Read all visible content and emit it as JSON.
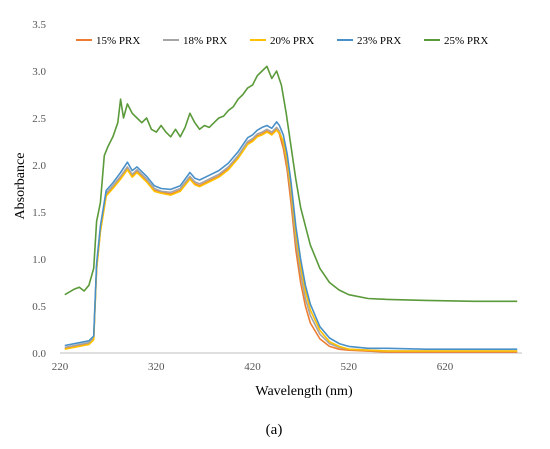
{
  "chart_data": {
    "type": "line",
    "title": "",
    "xlabel": "Wavelength (nm)",
    "ylabel": "Absorbance",
    "xlim": [
      220,
      700
    ],
    "ylim": [
      0,
      3.5
    ],
    "xticks": [
      "220",
      "320",
      "420",
      "520",
      "620"
    ],
    "yticks": [
      "0.0",
      "0.5",
      "1.0",
      "1.5",
      "2.0",
      "2.5",
      "3.0",
      "3.5"
    ],
    "grid": false,
    "legend_position": "top",
    "series": [
      {
        "name": "15% PRX",
        "color": "#ED7D31",
        "x": [
          225,
          240,
          250,
          255,
          258,
          262,
          268,
          275,
          283,
          290,
          295,
          300,
          310,
          318,
          325,
          335,
          345,
          355,
          360,
          365,
          375,
          385,
          395,
          405,
          415,
          420,
          425,
          430,
          435,
          440,
          445,
          448,
          452,
          456,
          460,
          465,
          470,
          475,
          480,
          490,
          500,
          510,
          520,
          540,
          560,
          600,
          650,
          695
        ],
        "y": [
          0.05,
          0.08,
          0.1,
          0.15,
          0.9,
          1.3,
          1.68,
          1.76,
          1.86,
          1.96,
          1.88,
          1.93,
          1.83,
          1.73,
          1.71,
          1.69,
          1.73,
          1.86,
          1.8,
          1.78,
          1.83,
          1.88,
          1.96,
          2.08,
          2.23,
          2.26,
          2.31,
          2.33,
          2.36,
          2.33,
          2.38,
          2.33,
          2.18,
          1.95,
          1.6,
          1.1,
          0.75,
          0.5,
          0.32,
          0.15,
          0.07,
          0.04,
          0.03,
          0.02,
          0.01,
          0.01,
          0.01,
          0.01
        ]
      },
      {
        "name": "18% PRX",
        "color": "#A5A5A5",
        "x": [
          225,
          240,
          250,
          255,
          258,
          262,
          268,
          275,
          283,
          290,
          295,
          300,
          310,
          318,
          325,
          335,
          345,
          355,
          360,
          365,
          375,
          385,
          395,
          405,
          415,
          420,
          425,
          430,
          435,
          440,
          445,
          448,
          452,
          456,
          460,
          465,
          470,
          475,
          480,
          490,
          500,
          510,
          520,
          540,
          560,
          600,
          650,
          695
        ],
        "y": [
          0.06,
          0.09,
          0.11,
          0.16,
          0.92,
          1.32,
          1.7,
          1.78,
          1.88,
          1.98,
          1.9,
          1.95,
          1.85,
          1.75,
          1.72,
          1.71,
          1.75,
          1.88,
          1.82,
          1.8,
          1.85,
          1.9,
          1.98,
          2.1,
          2.25,
          2.28,
          2.33,
          2.35,
          2.38,
          2.35,
          2.4,
          2.36,
          2.24,
          2.02,
          1.7,
          1.2,
          0.85,
          0.58,
          0.4,
          0.2,
          0.1,
          0.06,
          0.04,
          0.03,
          0.02,
          0.02,
          0.02,
          0.02
        ]
      },
      {
        "name": "20% PRX",
        "color": "#FFC000",
        "x": [
          225,
          240,
          250,
          255,
          258,
          262,
          268,
          275,
          283,
          290,
          295,
          300,
          310,
          318,
          325,
          335,
          345,
          355,
          360,
          365,
          375,
          385,
          395,
          405,
          415,
          420,
          425,
          430,
          435,
          440,
          445,
          448,
          452,
          456,
          460,
          465,
          470,
          475,
          480,
          490,
          500,
          510,
          520,
          540,
          560,
          600,
          650,
          695
        ],
        "y": [
          0.04,
          0.07,
          0.09,
          0.14,
          0.89,
          1.29,
          1.67,
          1.75,
          1.85,
          1.95,
          1.87,
          1.92,
          1.82,
          1.72,
          1.7,
          1.68,
          1.72,
          1.85,
          1.79,
          1.77,
          1.82,
          1.87,
          1.95,
          2.07,
          2.22,
          2.25,
          2.3,
          2.32,
          2.35,
          2.32,
          2.37,
          2.34,
          2.25,
          2.05,
          1.75,
          1.28,
          0.93,
          0.66,
          0.46,
          0.24,
          0.12,
          0.07,
          0.04,
          0.03,
          0.02,
          0.02,
          0.02,
          0.02
        ]
      },
      {
        "name": "23% PRX",
        "color": "#4A90C8",
        "x": [
          225,
          240,
          250,
          255,
          258,
          262,
          268,
          275,
          283,
          290,
          295,
          300,
          310,
          318,
          325,
          335,
          345,
          355,
          360,
          365,
          375,
          385,
          395,
          405,
          415,
          420,
          425,
          430,
          435,
          440,
          445,
          448,
          452,
          456,
          460,
          465,
          470,
          475,
          480,
          490,
          500,
          510,
          520,
          540,
          560,
          600,
          650,
          695
        ],
        "y": [
          0.08,
          0.11,
          0.13,
          0.18,
          0.95,
          1.35,
          1.73,
          1.81,
          1.92,
          2.03,
          1.94,
          1.98,
          1.88,
          1.78,
          1.75,
          1.74,
          1.78,
          1.92,
          1.86,
          1.84,
          1.89,
          1.94,
          2.02,
          2.14,
          2.29,
          2.32,
          2.37,
          2.4,
          2.42,
          2.39,
          2.46,
          2.42,
          2.32,
          2.12,
          1.82,
          1.35,
          1.0,
          0.72,
          0.52,
          0.28,
          0.16,
          0.1,
          0.07,
          0.05,
          0.05,
          0.04,
          0.04,
          0.04
        ]
      },
      {
        "name": "25% PRX",
        "color": "#5B9A3A",
        "x": [
          225,
          235,
          240,
          245,
          250,
          255,
          258,
          262,
          266,
          270,
          275,
          280,
          283,
          286,
          290,
          295,
          300,
          305,
          310,
          315,
          320,
          325,
          330,
          335,
          340,
          345,
          350,
          355,
          360,
          365,
          370,
          375,
          380,
          385,
          390,
          395,
          400,
          405,
          410,
          415,
          420,
          425,
          430,
          435,
          440,
          445,
          450,
          455,
          460,
          465,
          470,
          475,
          480,
          490,
          500,
          510,
          520,
          540,
          560,
          600,
          650,
          695
        ],
        "y": [
          0.62,
          0.68,
          0.7,
          0.66,
          0.72,
          0.9,
          1.4,
          1.6,
          2.1,
          2.2,
          2.3,
          2.45,
          2.7,
          2.5,
          2.65,
          2.55,
          2.5,
          2.45,
          2.5,
          2.38,
          2.35,
          2.42,
          2.35,
          2.3,
          2.38,
          2.3,
          2.4,
          2.55,
          2.45,
          2.38,
          2.42,
          2.4,
          2.45,
          2.5,
          2.52,
          2.58,
          2.62,
          2.7,
          2.75,
          2.82,
          2.85,
          2.95,
          3.0,
          3.05,
          2.92,
          3.0,
          2.85,
          2.55,
          2.2,
          1.85,
          1.55,
          1.35,
          1.15,
          0.9,
          0.75,
          0.67,
          0.62,
          0.58,
          0.57,
          0.56,
          0.55,
          0.55
        ]
      }
    ]
  },
  "caption": "(a)"
}
